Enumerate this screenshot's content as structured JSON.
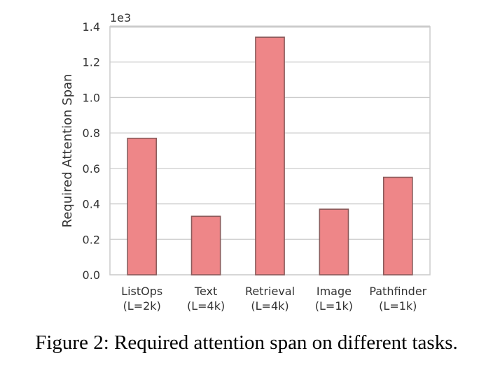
{
  "chart_data": {
    "type": "bar",
    "categories": [
      "ListOps",
      "Text",
      "Retrieval",
      "Image",
      "Pathfinder"
    ],
    "category_sublabels": [
      "(L=2k)",
      "(L=4k)",
      "(L=4k)",
      "(L=1k)",
      "(L=1k)"
    ],
    "values": [
      0.77,
      0.33,
      1.34,
      0.37,
      0.55
    ],
    "scale_label": "1e3",
    "ylabel": "Required Attention Span",
    "xlabel": "",
    "ylim": [
      0,
      1.4
    ],
    "yticks": [
      0.0,
      0.2,
      0.4,
      0.6,
      0.8,
      1.0,
      1.2,
      1.4
    ],
    "ytick_labels": [
      "0.0",
      "0.2",
      "0.4",
      "0.6",
      "0.8",
      "1.0",
      "1.2",
      "1.4"
    ],
    "grid": true,
    "bar_color": "#EE8688",
    "bar_edge_color": "#8A5A5A"
  },
  "caption": "Figure 2: Required attention span on different tasks."
}
